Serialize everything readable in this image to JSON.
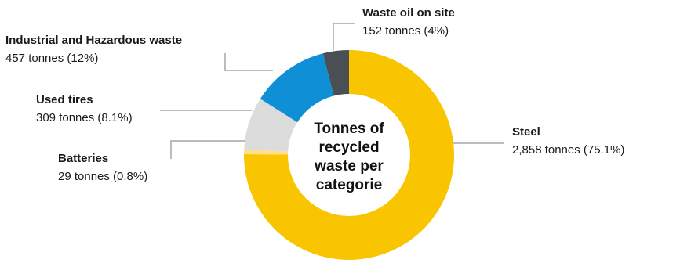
{
  "chart_data": {
    "type": "pie",
    "variant": "donut",
    "center_label": [
      "Tonnes of",
      "recycled",
      "waste per",
      "categorie"
    ],
    "unit": "tonnes",
    "slices": [
      {
        "name": "Steel",
        "value": 2858,
        "value_label": "2,858 tonnes (75.1%)",
        "color": "#f8c500"
      },
      {
        "name": "Batteries",
        "value": 29,
        "value_label": "29 tonnes (0.8%)",
        "color": "#ffe08a"
      },
      {
        "name": "Used tires",
        "value": 309,
        "value_label": "309 tonnes (8.1%)",
        "color": "#dcdcdc"
      },
      {
        "name": "Industrial and Hazardous waste",
        "value": 457,
        "value_label": "457 tonnes (12%)",
        "color": "#0f8fd6"
      },
      {
        "name": "Waste oil on site",
        "value": 152,
        "value_label": "152 tonnes (4%)",
        "color": "#4a4f54"
      }
    ],
    "leader_color": "#a6a6a6"
  }
}
